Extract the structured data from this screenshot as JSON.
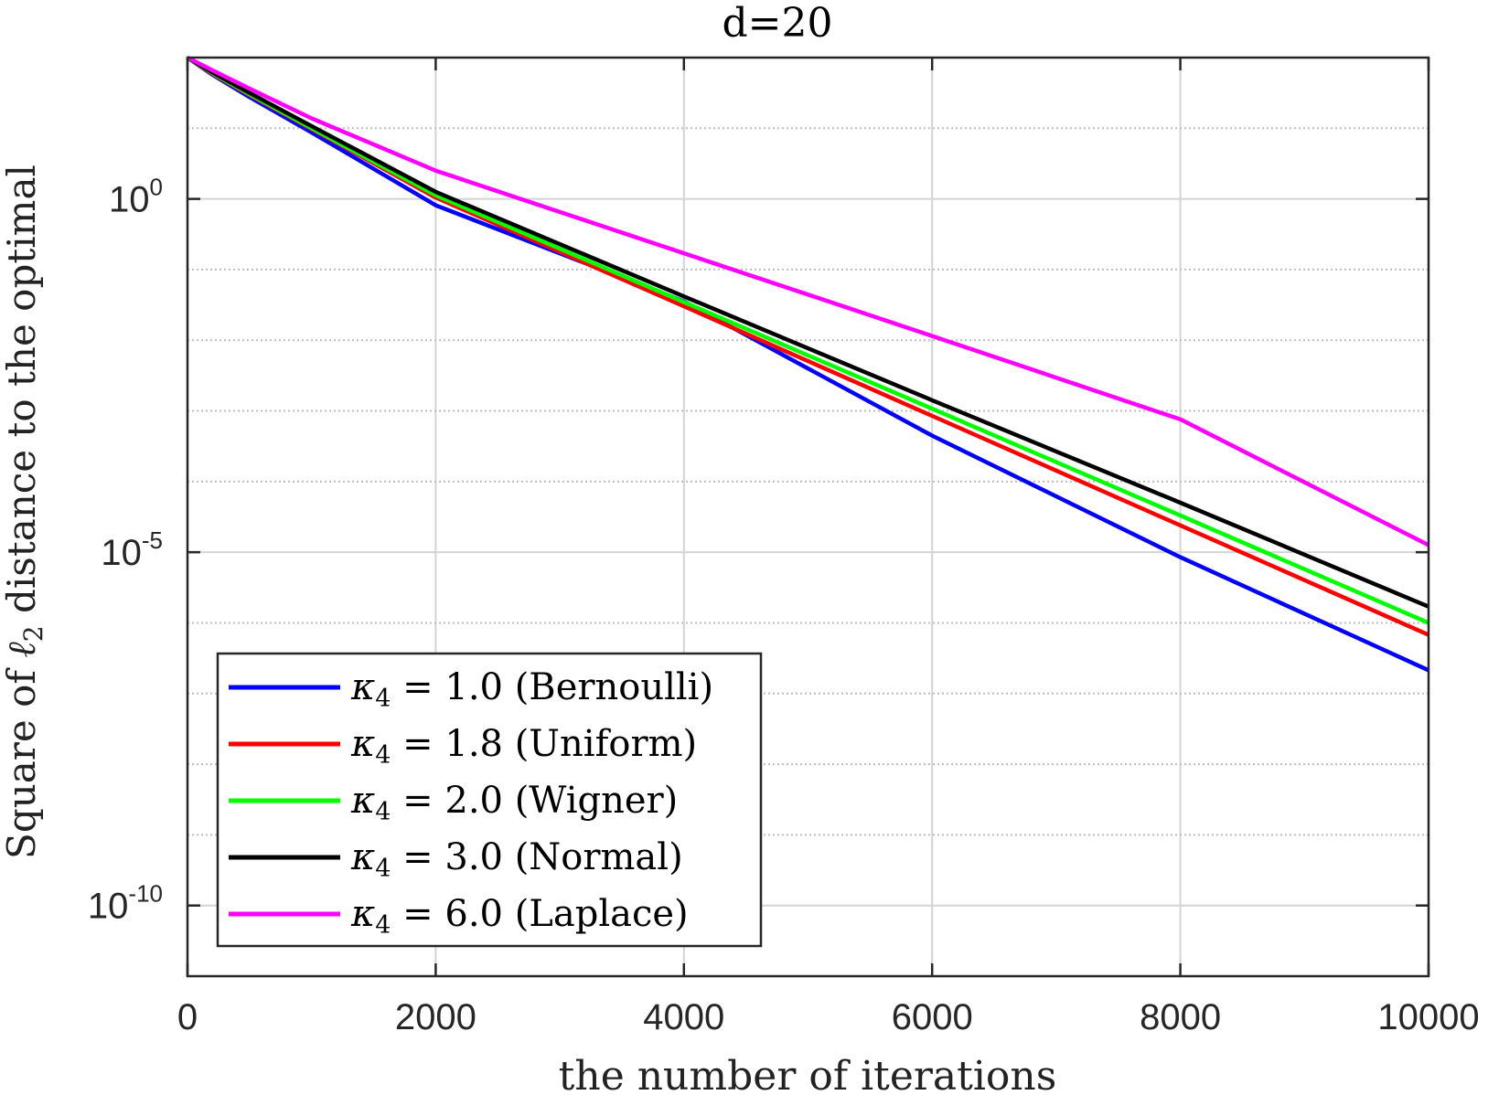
{
  "chart_data": {
    "type": "line",
    "title": "d=20",
    "xlabel": "the number of iterations",
    "ylabel": {
      "prefix": "Square of ",
      "symbol": "ℓ",
      "subscript": "2",
      "suffix": " distance to the optimal"
    },
    "xscale": "linear",
    "yscale": "log",
    "xlim": [
      0,
      10000
    ],
    "ylim_exponents": [
      -11,
      2
    ],
    "xticks": [
      0,
      2000,
      4000,
      6000,
      8000,
      10000
    ],
    "xtick_labels": [
      "0",
      "2000",
      "4000",
      "6000",
      "8000",
      "10000"
    ],
    "yticks": [
      {
        "exponent": 0,
        "base": "10",
        "sup": "0"
      },
      {
        "exponent": -5,
        "base": "10",
        "sup": "-5"
      },
      {
        "exponent": -10,
        "base": "10",
        "sup": "-10"
      }
    ],
    "grid": true,
    "legend_location": "bottom-left",
    "series": [
      {
        "name": "κ4 = 1.0 (Bernoulli)",
        "greek": "κ",
        "sub": "4",
        "eq": " = 1.0 ",
        "dist": "(Bernoulli)",
        "color": "#0000ff",
        "x": [
          0,
          200,
          500,
          1000,
          2000,
          4000,
          6000,
          8000,
          10000
        ],
        "log10_y": [
          2.0,
          1.76,
          1.44,
          0.94,
          -0.09,
          -1.45,
          -3.35,
          -5.07,
          -6.67
        ]
      },
      {
        "name": "κ4 = 1.8 (Uniform)",
        "greek": "κ",
        "sub": "4",
        "eq": " = 1.8 ",
        "dist": "(Uniform)",
        "color": "#ff0000",
        "x": [
          0,
          200,
          500,
          1000,
          2000,
          4000,
          6000,
          8000,
          10000
        ],
        "log10_y": [
          2.0,
          1.77,
          1.47,
          0.99,
          0.02,
          -1.52,
          -3.07,
          -4.62,
          -6.17
        ]
      },
      {
        "name": "κ4 = 2.0 (Wigner)",
        "greek": "κ",
        "sub": "4",
        "eq": " = 2.0 ",
        "dist": "(Wigner)",
        "color": "#00ff00",
        "x": [
          0,
          200,
          500,
          1000,
          2000,
          4000,
          6000,
          8000,
          10000
        ],
        "log10_y": [
          2.0,
          1.78,
          1.48,
          1.0,
          0.05,
          -1.46,
          -2.97,
          -4.48,
          -6.0
        ]
      },
      {
        "name": "κ4 = 3.0 (Normal)",
        "greek": "κ",
        "sub": "4",
        "eq": " = 3.0 ",
        "dist": "(Normal)",
        "color": "#000000",
        "x": [
          0,
          200,
          500,
          1000,
          2000,
          4000,
          6000,
          8000,
          10000
        ],
        "log10_y": [
          2.0,
          1.79,
          1.5,
          1.03,
          0.1,
          -1.38,
          -2.85,
          -4.3,
          -5.77
        ]
      },
      {
        "name": "κ4 = 6.0 (Laplace)",
        "greek": "κ",
        "sub": "4",
        "eq": " = 6.0 ",
        "dist": "(Laplace)",
        "color": "#ff00ff",
        "x": [
          0,
          200,
          500,
          1000,
          2000,
          4000,
          6000,
          8000,
          10000
        ],
        "log10_y": [
          2.0,
          1.82,
          1.56,
          1.14,
          0.4,
          -0.77,
          -1.94,
          -3.12,
          -4.9
        ]
      }
    ]
  }
}
